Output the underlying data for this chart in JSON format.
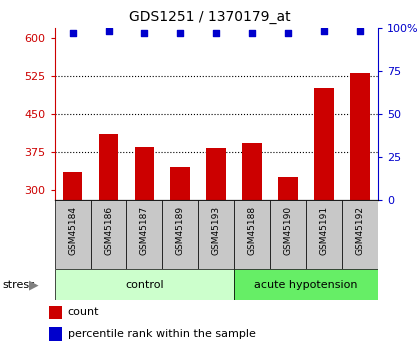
{
  "title": "GDS1251 / 1370179_at",
  "samples": [
    "GSM45184",
    "GSM45186",
    "GSM45187",
    "GSM45189",
    "GSM45193",
    "GSM45188",
    "GSM45190",
    "GSM45191",
    "GSM45192"
  ],
  "counts": [
    335,
    410,
    385,
    345,
    383,
    393,
    325,
    500,
    530
  ],
  "percentiles": [
    97,
    98,
    97,
    97,
    97,
    97,
    97,
    98,
    98
  ],
  "groups": [
    {
      "label": "control",
      "start": 0,
      "end": 5,
      "color": "#ccffcc"
    },
    {
      "label": "acute hypotension",
      "start": 5,
      "end": 9,
      "color": "#66ee66"
    }
  ],
  "ylim_left": [
    280,
    620
  ],
  "ylim_right": [
    0,
    100
  ],
  "yticks_left": [
    300,
    375,
    450,
    525,
    600
  ],
  "yticks_right": [
    0,
    25,
    50,
    75,
    100
  ],
  "bar_color": "#cc0000",
  "dot_color": "#0000cc",
  "xticklabels_bg": "#c8c8c8",
  "left_axis_color": "#cc0000",
  "right_axis_color": "#0000cc",
  "stress_label": "stress",
  "legend_count_label": "count",
  "legend_percentile_label": "percentile rank within the sample",
  "bar_bottom": 280
}
